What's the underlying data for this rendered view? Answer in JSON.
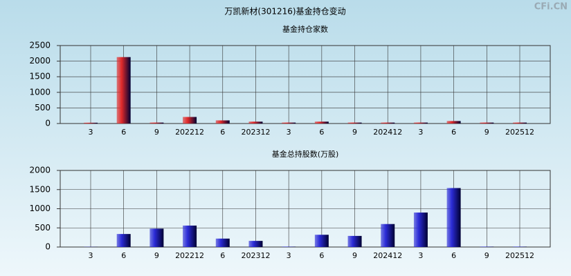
{
  "title": "万凯新材(301216)基金持仓变动",
  "watermark": "CFi.CN",
  "chart_data": [
    {
      "type": "bar",
      "title": "基金持仓家数",
      "categories": [
        "3",
        "6",
        "9",
        "202212",
        "6",
        "202312",
        "3",
        "6",
        "9",
        "202412",
        "3",
        "6",
        "9",
        "202512"
      ],
      "values": [
        25,
        2130,
        30,
        210,
        100,
        60,
        30,
        60,
        30,
        30,
        30,
        80,
        30,
        30
      ],
      "color": "#e02a2a",
      "ylim": [
        0,
        2500
      ],
      "yticks": [
        0,
        500,
        1000,
        1500,
        2000,
        2500
      ],
      "grid": true
    },
    {
      "type": "bar",
      "title": "基金总持股数(万股)",
      "categories": [
        "3",
        "6",
        "9",
        "202212",
        "6",
        "202312",
        "3",
        "6",
        "9",
        "202412",
        "3",
        "6",
        "9",
        "202512"
      ],
      "values": [
        5,
        340,
        480,
        560,
        220,
        160,
        10,
        320,
        290,
        600,
        900,
        1540,
        10,
        10
      ],
      "color": "#2b2bd6",
      "ylim": [
        0,
        2000
      ],
      "yticks": [
        0,
        500,
        1000,
        1500,
        2000
      ],
      "grid": true
    }
  ]
}
